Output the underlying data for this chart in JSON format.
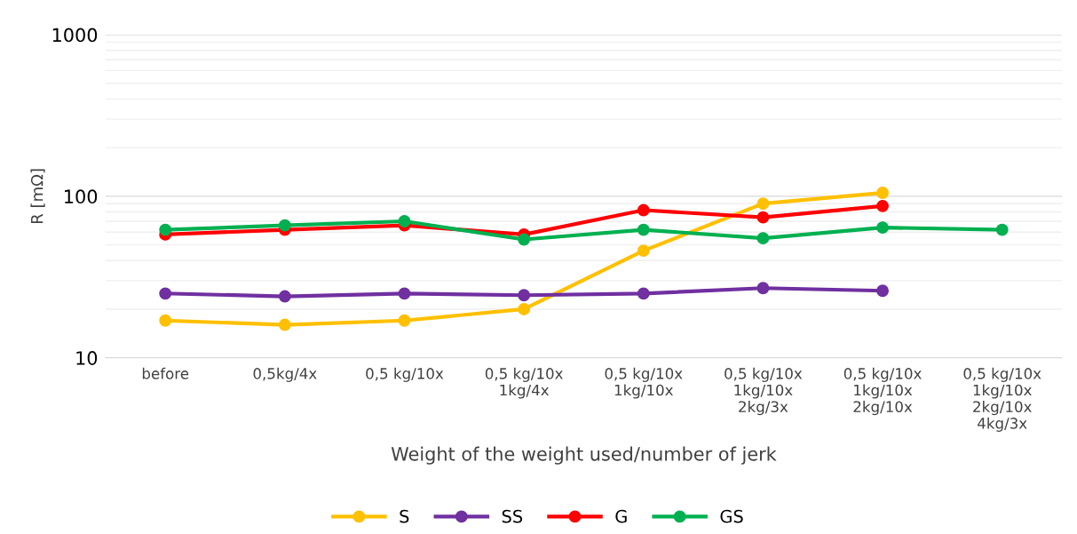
{
  "chart_data": {
    "type": "line",
    "xlabel": "Weight of the weight used/number of jerk",
    "ylabel": "R [mΩ]",
    "categories": [
      "before",
      "0,5kg/4x",
      "0,5 kg/10x",
      "0,5 kg/10x\n1kg/4x",
      "0,5 kg/10x\n1kg/10x",
      "0,5 kg/10x\n1kg/10x\n2kg/3x",
      "0,5 kg/10x\n1kg/10x\n2kg/10x",
      "0,5 kg/10x\n1kg/10x\n2kg/10x\n4kg/3x"
    ],
    "series": [
      {
        "name": "S",
        "color": "#ffc000",
        "values": [
          17,
          16,
          17,
          20,
          46,
          90,
          105,
          null
        ]
      },
      {
        "name": "SS",
        "color": "#7030a0",
        "values": [
          25,
          24,
          25,
          24.4,
          25,
          27,
          26,
          null
        ]
      },
      {
        "name": "G",
        "color": "#ff0000",
        "values": [
          58,
          62,
          66,
          58,
          82,
          74,
          87,
          null
        ]
      },
      {
        "name": "GS",
        "color": "#00b050",
        "values": [
          62,
          66,
          70,
          54,
          62,
          55,
          64,
          62
        ]
      }
    ],
    "log": true,
    "ylim": [
      10,
      1000
    ],
    "yticks": [
      10,
      100,
      1000
    ],
    "grid": true,
    "legend": "bottom",
    "marker": "circle",
    "line_style": "solid"
  }
}
